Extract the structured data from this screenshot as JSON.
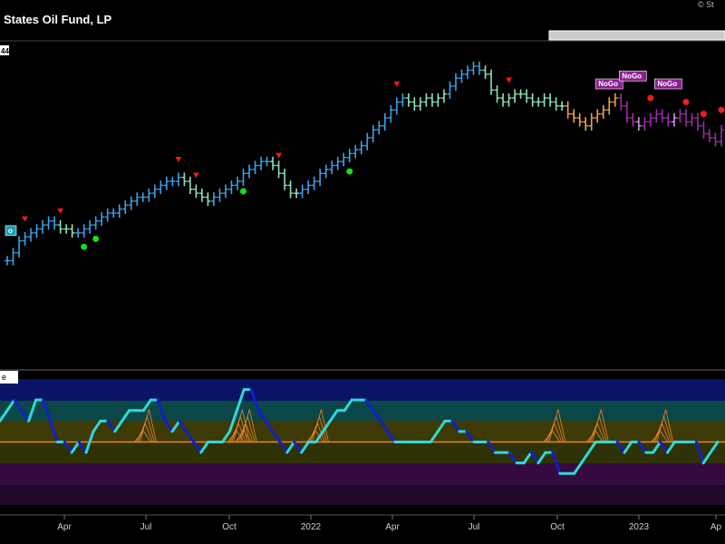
{
  "header": {
    "title": "States Oil Fund, LP",
    "copyright": "© St",
    "scale_badge": "44",
    "gobar_tag": "o",
    "osc_tag": "e"
  },
  "colors": {
    "strong_go": "#3aa0e8",
    "weak_go": "#8fe0b8",
    "weak_nogo": "#f0a040",
    "nogo": "#9c2aa8",
    "strong_nogo": "#cc99dd",
    "zero_line": "#e8862a",
    "osc_dark": "#1020c8",
    "osc_light": "#30d8d8",
    "signal_green": "#18e018",
    "signal_red": "#ee1c1c"
  },
  "chart_data": [
    {
      "type": "line",
      "title": "States Oil Fund, LP",
      "series": [
        {
          "values": [
            44,
            46,
            49,
            50,
            51,
            52,
            53,
            54,
            53,
            52,
            52,
            51,
            51,
            52,
            53,
            54,
            55,
            56,
            56,
            57,
            58,
            59,
            60,
            60,
            61,
            62,
            63,
            64,
            64,
            65,
            64,
            62,
            61,
            60,
            59,
            60,
            61,
            62,
            63,
            64,
            66,
            67,
            68,
            69,
            69,
            68,
            66,
            63,
            61,
            61,
            62,
            63,
            64,
            66,
            67,
            68,
            69,
            70,
            71,
            72,
            73,
            75,
            77,
            78,
            80,
            82,
            84,
            85,
            84,
            83,
            84,
            85,
            84,
            85,
            86,
            88,
            90,
            91,
            92,
            93,
            92,
            91,
            87,
            85,
            84,
            85,
            86,
            86,
            85,
            84,
            84,
            85,
            84,
            83,
            83,
            81,
            80,
            79,
            78,
            80,
            81,
            82,
            84,
            85,
            83,
            80,
            79,
            78,
            79,
            80,
            81,
            80,
            79,
            80,
            81,
            79,
            80,
            78,
            76,
            75,
            74,
            77
          ],
          "bar_phase": [
            "strong_go",
            "strong_go",
            "strong_go",
            "strong_go",
            "strong_go",
            "strong_go",
            "strong_go",
            "strong_go",
            "strong_go",
            "weak_go",
            "weak_go",
            "weak_go",
            "strong_go",
            "strong_go",
            "strong_go",
            "strong_go",
            "strong_go",
            "strong_go",
            "strong_go",
            "strong_go",
            "strong_go",
            "strong_go",
            "strong_go",
            "strong_go",
            "strong_go",
            "strong_go",
            "strong_go",
            "strong_go",
            "strong_go",
            "strong_go",
            "weak_go",
            "weak_go",
            "weak_go",
            "weak_go",
            "weak_go",
            "strong_go",
            "strong_go",
            "strong_go",
            "strong_go",
            "strong_go",
            "strong_go",
            "strong_go",
            "strong_go",
            "strong_go",
            "strong_go",
            "weak_go",
            "weak_go",
            "weak_go",
            "weak_go",
            "weak_go",
            "strong_go",
            "strong_go",
            "strong_go",
            "strong_go",
            "strong_go",
            "strong_go",
            "strong_go",
            "strong_go",
            "strong_go",
            "strong_go",
            "strong_go",
            "strong_go",
            "strong_go",
            "strong_go",
            "strong_go",
            "strong_go",
            "strong_go",
            "strong_go",
            "weak_go",
            "weak_go",
            "weak_go",
            "weak_go",
            "weak_go",
            "weak_go",
            "weak_go",
            "strong_go",
            "strong_go",
            "strong_go",
            "strong_go",
            "strong_go",
            "strong_go",
            "weak_go",
            "weak_go",
            "weak_go",
            "weak_go",
            "weak_go",
            "weak_go",
            "weak_go",
            "weak_go",
            "weak_go",
            "weak_go",
            "weak_go",
            "weak_go",
            "weak_go",
            "weak_go",
            "weak_nogo",
            "weak_nogo",
            "weak_nogo",
            "weak_nogo",
            "weak_nogo",
            "weak_nogo",
            "weak_nogo",
            "weak_nogo",
            "weak_nogo",
            "nogo",
            "nogo",
            "nogo",
            "strong_nogo",
            "nogo",
            "nogo",
            "nogo",
            "nogo",
            "nogo",
            "strong_nogo",
            "nogo",
            "nogo",
            "nogo",
            "nogo",
            "nogo",
            "nogo",
            "nogo",
            "nogo"
          ]
        }
      ],
      "annotations": {
        "go_signals": [
          13,
          15,
          40,
          58
        ],
        "countertrend_down": [
          3,
          9,
          29,
          32,
          46,
          66,
          85
        ],
        "nogo_signals": [
          109,
          115,
          118,
          121,
          127
        ],
        "labels": [
          {
            "index": 0,
            "text": "o"
          },
          {
            "index": 100,
            "text": "NoGo"
          },
          {
            "index": 104,
            "text": "NoGo"
          },
          {
            "index": 110,
            "text": "NoGo"
          }
        ]
      },
      "xlabel": "",
      "ylabel": ""
    },
    {
      "type": "line",
      "series": [
        {
          "values": [
            2,
            3,
            4,
            3,
            2,
            4,
            4,
            2,
            0,
            0,
            -1,
            0,
            -1,
            1,
            2,
            2,
            1,
            2,
            3,
            3,
            3,
            4,
            4,
            2,
            1,
            2,
            1,
            0,
            -1,
            0,
            0,
            0,
            1,
            3,
            5,
            5,
            3,
            2,
            1,
            0,
            -1,
            0,
            -1,
            0,
            0,
            1,
            2,
            3,
            3,
            4,
            4,
            4,
            3,
            2,
            1,
            0,
            0,
            0,
            0,
            0,
            0,
            1,
            2,
            2,
            1,
            1,
            0,
            0,
            0,
            -1,
            -1,
            -1,
            -2,
            -2,
            -1,
            -2,
            -1,
            -1,
            -3,
            -3,
            -3,
            -2,
            -1,
            0,
            0,
            0,
            0,
            -1,
            0,
            0,
            -1,
            -1,
            0,
            -1,
            0,
            0,
            0,
            0,
            -2,
            -1,
            0
          ]
        }
      ],
      "ylim": [
        -6,
        6
      ]
    }
  ],
  "axis": {
    "tick_labels": [
      "Apr",
      "Jul",
      "Oct",
      "2022",
      "Apr",
      "Jul",
      "Oct",
      "2023",
      "Ap"
    ]
  }
}
